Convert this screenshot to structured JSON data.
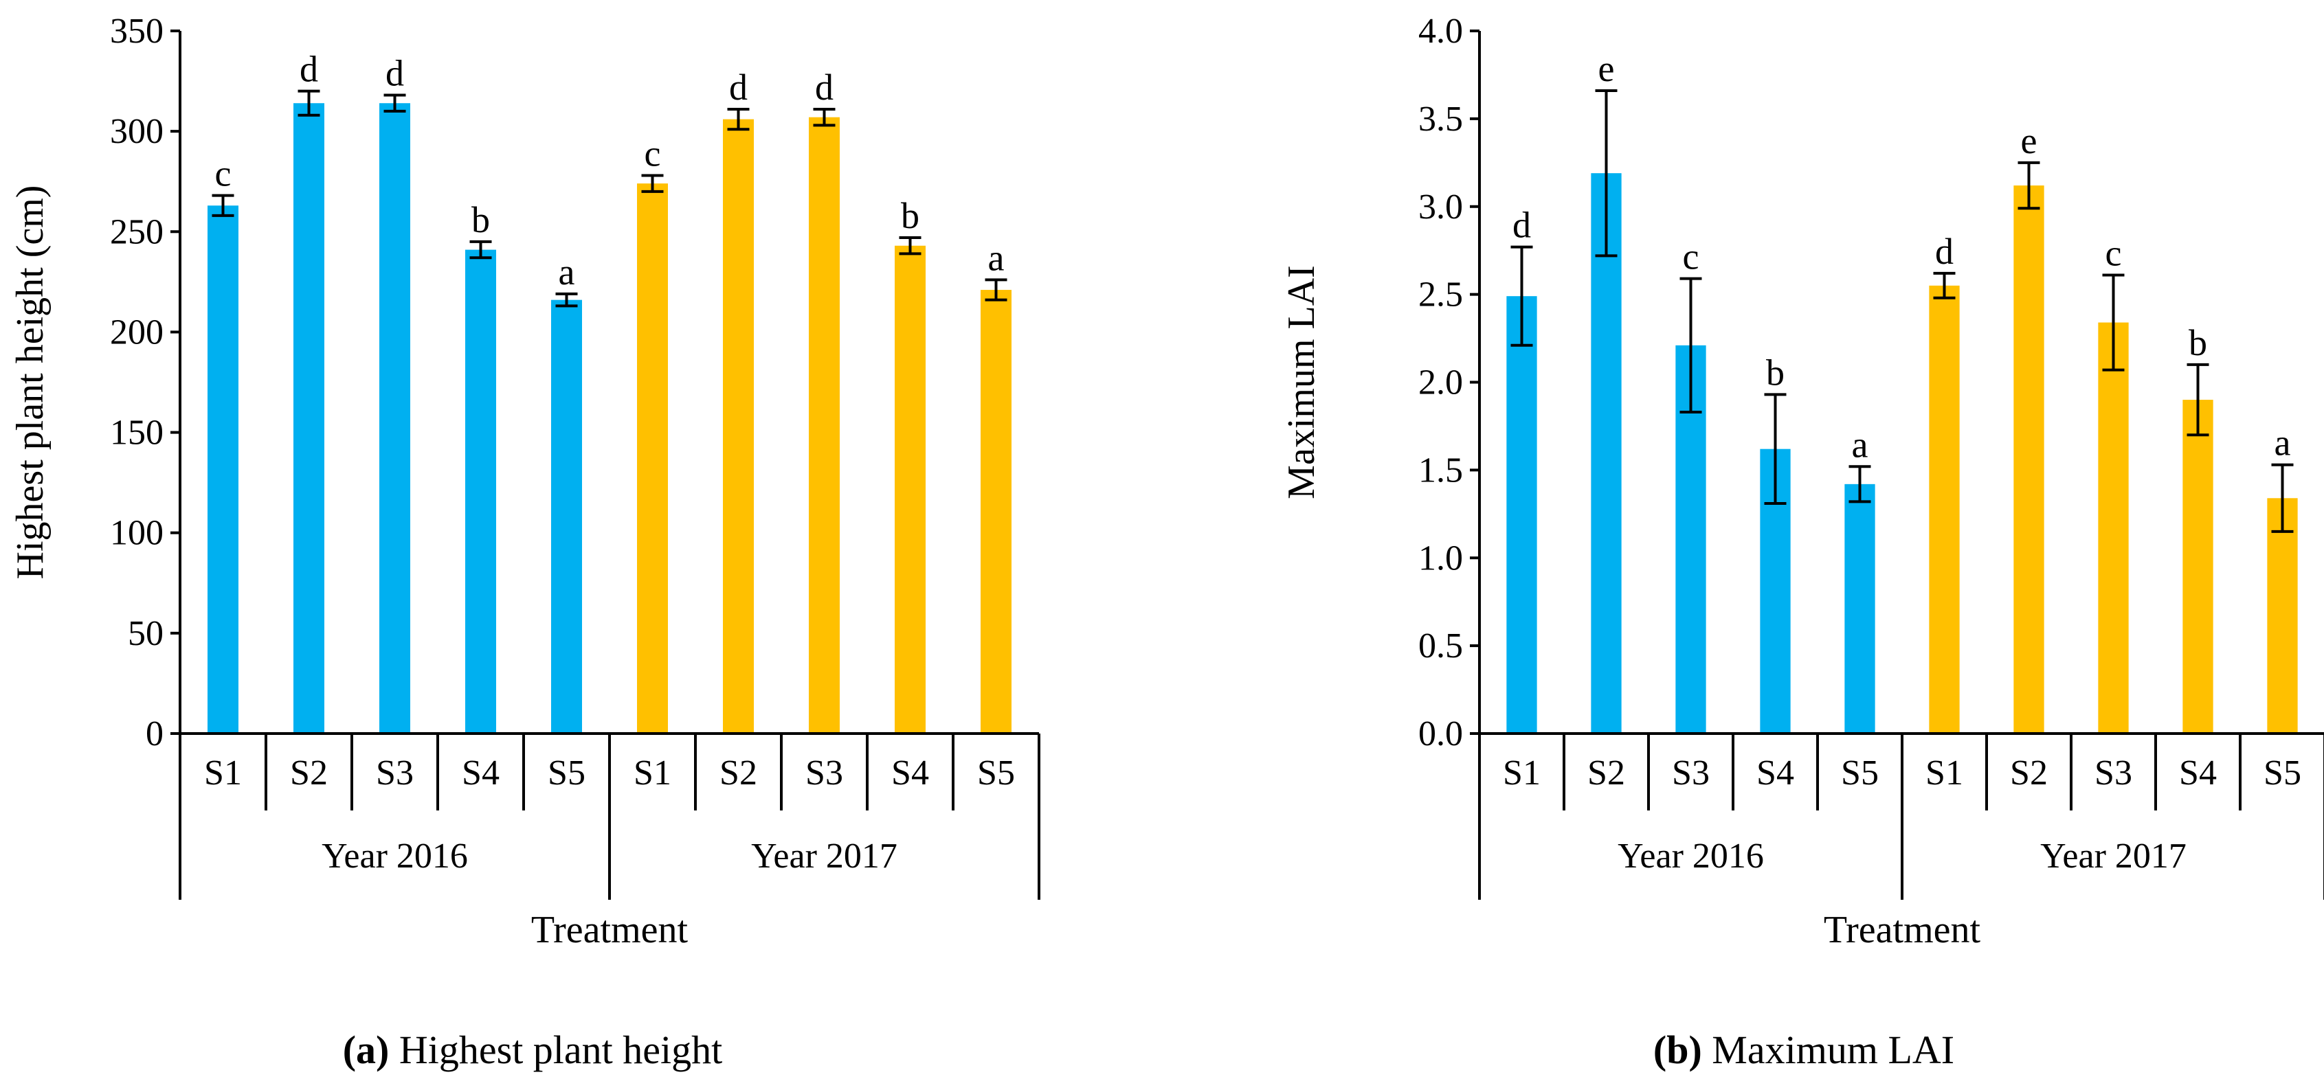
{
  "chart_data": [
    {
      "type": "bar",
      "caption_prefix": "(a)",
      "caption_text": "Highest plant height",
      "ylabel": "Highest plant height (cm)",
      "xlabel": "Treatment",
      "ylim": [
        0,
        350
      ],
      "yticks": [
        "0",
        "50",
        "100",
        "150",
        "200",
        "250",
        "300",
        "350"
      ],
      "groups": [
        {
          "label": "Year 2016",
          "color": "#00B0F0",
          "categories": [
            "S1",
            "S2",
            "S3",
            "S4",
            "S5"
          ],
          "values": [
            263,
            314,
            314,
            241,
            216
          ],
          "errors": [
            5,
            6,
            4,
            4,
            3
          ],
          "letters": [
            "c",
            "d",
            "d",
            "b",
            "a"
          ]
        },
        {
          "label": "Year 2017",
          "color": "#FFC000",
          "categories": [
            "S1",
            "S2",
            "S3",
            "S4",
            "S5"
          ],
          "values": [
            274,
            306,
            307,
            243,
            221
          ],
          "errors": [
            4,
            5,
            4,
            4,
            5
          ],
          "letters": [
            "c",
            "d",
            "d",
            "b",
            "a"
          ]
        }
      ]
    },
    {
      "type": "bar",
      "caption_prefix": "(b)",
      "caption_text": "Maximum LAI",
      "ylabel": "Maximum LAI",
      "xlabel": "Treatment",
      "ylim": [
        0,
        4.0
      ],
      "yticks": [
        "0.0",
        "0.5",
        "1.0",
        "1.5",
        "2.0",
        "2.5",
        "3.0",
        "3.5",
        "4.0"
      ],
      "groups": [
        {
          "label": "Year 2016",
          "color": "#00B0F0",
          "categories": [
            "S1",
            "S2",
            "S3",
            "S4",
            "S5"
          ],
          "values": [
            2.49,
            3.19,
            2.21,
            1.62,
            1.42
          ],
          "errors": [
            0.28,
            0.47,
            0.38,
            0.31,
            0.1
          ],
          "letters": [
            "d",
            "e",
            "c",
            "b",
            "a"
          ]
        },
        {
          "label": "Year 2017",
          "color": "#FFC000",
          "categories": [
            "S1",
            "S2",
            "S3",
            "S4",
            "S5"
          ],
          "values": [
            2.55,
            3.12,
            2.34,
            1.9,
            1.34
          ],
          "errors": [
            0.07,
            0.13,
            0.27,
            0.2,
            0.19
          ],
          "letters": [
            "d",
            "e",
            "c",
            "b",
            "a"
          ]
        }
      ]
    }
  ]
}
